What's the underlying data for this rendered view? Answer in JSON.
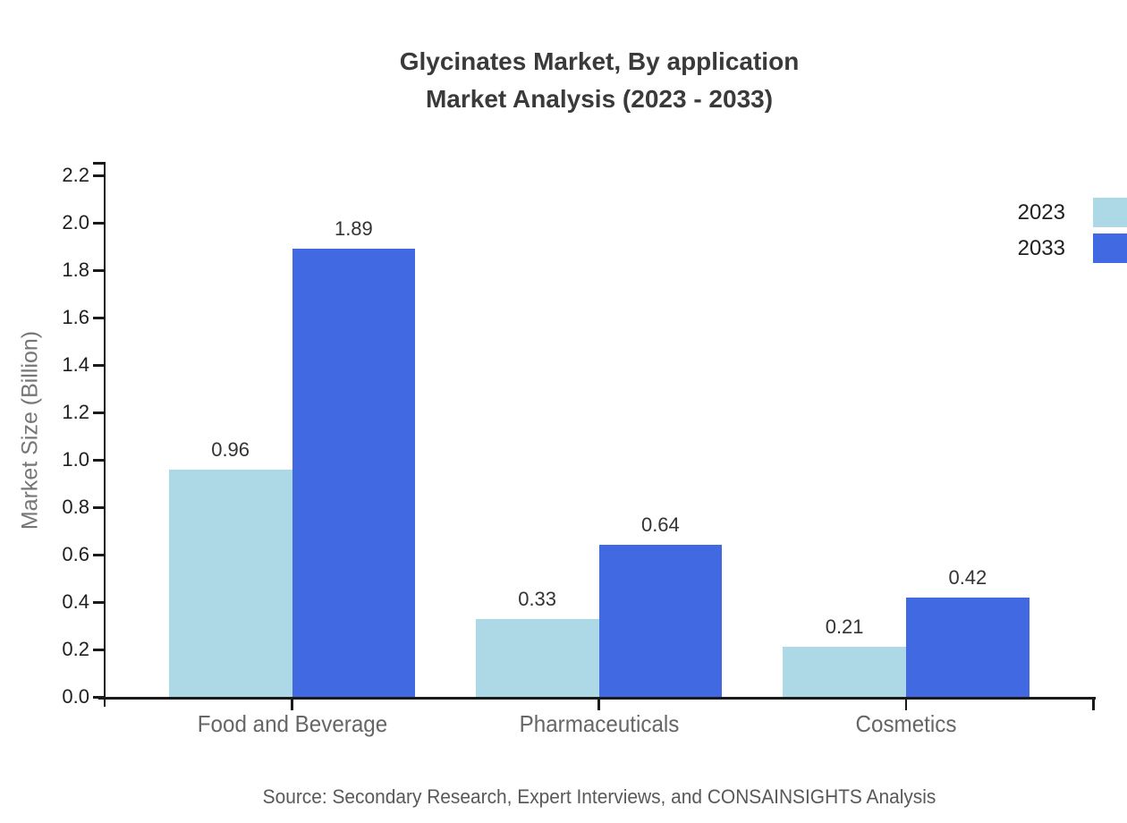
{
  "title": {
    "line1": "Glycinates Market, By application",
    "line2": "Market Analysis (2023 - 2033)"
  },
  "source_note": "Source: Secondary Research, Expert Interviews, and CONSAINSIGHTS Analysis",
  "chart_data": {
    "type": "bar",
    "title": "Glycinates Market, By application Market Analysis (2023 - 2033)",
    "categories": [
      "Food and Beverage",
      "Pharmaceuticals",
      "Cosmetics"
    ],
    "series": [
      {
        "name": "2023",
        "color": "#ADD8E6",
        "values": [
          0.96,
          0.33,
          0.21
        ]
      },
      {
        "name": "2033",
        "color": "#4169E1",
        "values": [
          1.89,
          0.64,
          0.42
        ]
      }
    ],
    "xlabel": "",
    "ylabel": "Market Size (Billion)",
    "ylim": [
      0,
      2.2
    ],
    "ytick_step": 0.2,
    "ytick_labels": [
      "0.0",
      "0.2",
      "0.4",
      "0.6",
      "0.8",
      "1.0",
      "1.2",
      "1.4",
      "1.6",
      "1.8",
      "2.0",
      "2.2"
    ],
    "grid": false,
    "legend_position": "top-right",
    "value_labels": true,
    "value_label_format": "2-decimals"
  }
}
